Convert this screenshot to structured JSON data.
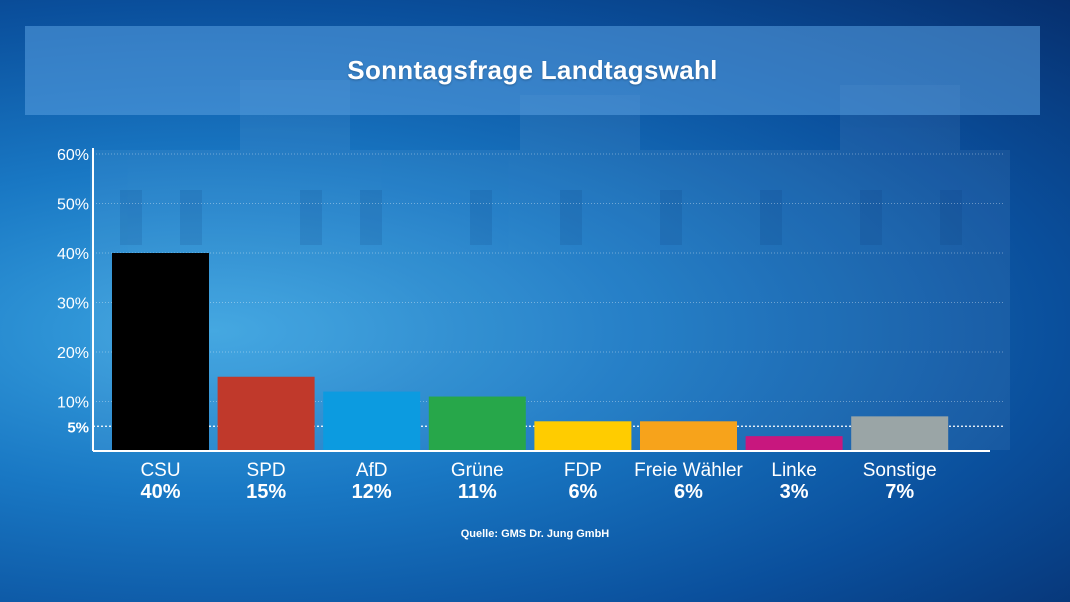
{
  "chart_data": {
    "type": "bar",
    "title": "Sonntagsfrage Landtagswahl",
    "categories": [
      "CSU",
      "SPD",
      "AfD",
      "Grüne",
      "FDP",
      "Freie Wähler",
      "Linke",
      "Sonstige"
    ],
    "values": [
      40,
      15,
      12,
      11,
      6,
      6,
      3,
      7
    ],
    "value_labels": [
      "40%",
      "15%",
      "12%",
      "11%",
      "6%",
      "6%",
      "3%",
      "7%"
    ],
    "colors": [
      "#000000",
      "#c0392b",
      "#0c9be0",
      "#27a74a",
      "#ffcc00",
      "#f7a31b",
      "#c8177e",
      "#9aa5a6"
    ],
    "y_ticks": [
      60,
      50,
      40,
      30,
      20,
      10
    ],
    "y_tick_labels": [
      "60%",
      "50%",
      "40%",
      "30%",
      "20%",
      "10%"
    ],
    "threshold": 5,
    "threshold_label": "5%",
    "ylim": [
      0,
      60
    ],
    "grid": true,
    "source": "Quelle: GMS Dr. Jung GmbH"
  }
}
